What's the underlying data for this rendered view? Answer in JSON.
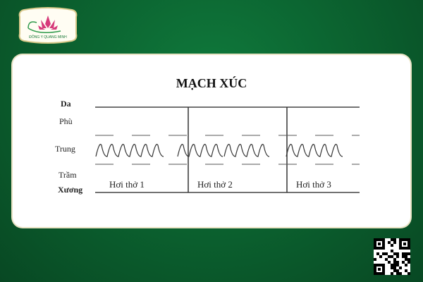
{
  "logo": {
    "text": "ĐÔNG Y QUANG MINH"
  },
  "diagram": {
    "title": "MẠCH XÚC",
    "levels": [
      "Da",
      "Phù",
      "Trung",
      "Trầm",
      "Xương"
    ],
    "breaths": [
      "Hơi thở 1",
      "Hơi thở 2",
      "Hơi thở 3"
    ]
  },
  "colors": {
    "background": "#0b5f2e",
    "card": "#ffffff",
    "logo_pink": "#d63a7a"
  },
  "qr": {
    "icon": "qr-code-icon"
  }
}
